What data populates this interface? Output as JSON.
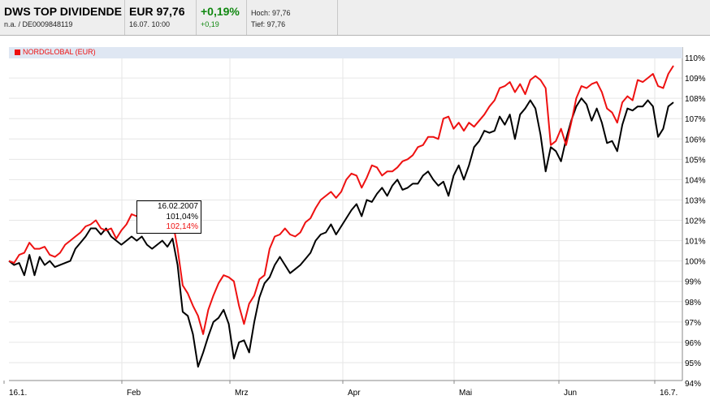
{
  "header": {
    "name": "DWS TOP DIVIDENDE",
    "meta": "n.a.  /  DE0009848119",
    "price": "EUR 97,76",
    "datetime": "16.07. 10:00",
    "change_pct": "+0,19%",
    "change_abs": "+0,19",
    "high": "Hoch: 97,76",
    "low": "Tief: 97,76"
  },
  "legend": {
    "label": "NORDGLOBAL (EUR)",
    "color": "#ee1111"
  },
  "tooltip": {
    "date": "16.02.2007",
    "black_value": "101,04%",
    "red_value": "102,14%"
  },
  "chart_data": {
    "type": "line",
    "x_labels": [
      "16.1.",
      "Feb",
      "Mrz",
      "Apr",
      "Mai",
      "Jun",
      "16.7."
    ],
    "y_ticks": [
      "94%",
      "95%",
      "96%",
      "97%",
      "98%",
      "99%",
      "100%",
      "101%",
      "102%",
      "103%",
      "104%",
      "105%",
      "106%",
      "107%",
      "108%",
      "109%",
      "110%"
    ],
    "ylim": [
      94,
      110
    ],
    "grid": true,
    "series": [
      {
        "name": "",
        "color": "#000000",
        "values": [
          100.0,
          99.8,
          99.9,
          99.3,
          100.3,
          99.3,
          100.2,
          99.8,
          100.0,
          99.7,
          99.8,
          99.9,
          100.0,
          100.6,
          100.9,
          101.2,
          101.6,
          101.6,
          101.3,
          101.6,
          101.2,
          101.0,
          100.8,
          101.0,
          101.2,
          101.0,
          101.2,
          100.8,
          100.6,
          100.8,
          101.0,
          100.7,
          101.1,
          99.8,
          97.5,
          97.3,
          96.4,
          94.8,
          95.5,
          96.3,
          97.0,
          97.2,
          97.6,
          96.9,
          95.2,
          96.0,
          96.1,
          95.5,
          97.0,
          98.2,
          98.9,
          99.2,
          99.8,
          100.2,
          99.8,
          99.4,
          99.6,
          99.8,
          100.1,
          100.4,
          101.0,
          101.3,
          101.4,
          101.8,
          101.3,
          101.7,
          102.1,
          102.5,
          102.8,
          102.2,
          103.0,
          102.9,
          103.3,
          103.6,
          103.2,
          103.7,
          104.0,
          103.5,
          103.6,
          103.8,
          103.8,
          104.2,
          104.4,
          104.0,
          103.7,
          103.9,
          103.2,
          104.2,
          104.7,
          104.0,
          104.7,
          105.6,
          105.9,
          106.4,
          106.3,
          106.4,
          107.1,
          106.7,
          107.2,
          106.0,
          107.2,
          107.5,
          107.9,
          107.5,
          106.2,
          104.4,
          105.6,
          105.4,
          104.9,
          106.0,
          106.9,
          107.6,
          108.0,
          107.7,
          106.9,
          107.5,
          106.8,
          105.8,
          105.9,
          105.4,
          106.7,
          107.5,
          107.4,
          107.6,
          107.6,
          107.9,
          107.6,
          106.1,
          106.5,
          107.6,
          107.8
        ]
      },
      {
        "name": "NORDGLOBAL (EUR)",
        "color": "#ee1111",
        "values": [
          100.0,
          99.9,
          100.3,
          100.4,
          100.9,
          100.6,
          100.6,
          100.7,
          100.3,
          100.2,
          100.4,
          100.8,
          101.0,
          101.2,
          101.4,
          101.7,
          101.8,
          102.0,
          101.6,
          101.5,
          101.6,
          101.1,
          101.5,
          101.8,
          102.3,
          102.2,
          102.6,
          102.3,
          102.2,
          102.1,
          102.4,
          102.1,
          102.0,
          100.6,
          98.8,
          98.4,
          97.8,
          97.3,
          96.4,
          97.6,
          98.3,
          98.9,
          99.3,
          99.2,
          99.0,
          97.8,
          96.9,
          97.9,
          98.3,
          99.1,
          99.3,
          100.6,
          101.2,
          101.3,
          101.6,
          101.3,
          101.2,
          101.4,
          101.9,
          102.1,
          102.6,
          103.0,
          103.2,
          103.4,
          103.1,
          103.4,
          104.0,
          104.3,
          104.2,
          103.6,
          104.1,
          104.7,
          104.6,
          104.2,
          104.4,
          104.4,
          104.6,
          104.9,
          105.0,
          105.2,
          105.6,
          105.7,
          106.1,
          106.1,
          106.0,
          107.0,
          107.1,
          106.5,
          106.8,
          106.4,
          106.8,
          106.6,
          106.9,
          107.2,
          107.6,
          107.9,
          108.5,
          108.6,
          108.8,
          108.3,
          108.7,
          108.2,
          108.9,
          109.1,
          108.9,
          108.5,
          105.7,
          105.9,
          106.5,
          105.7,
          106.8,
          108.0,
          108.6,
          108.5,
          108.7,
          108.8,
          108.3,
          107.5,
          107.3,
          106.8,
          107.8,
          108.1,
          107.9,
          108.9,
          108.8,
          109.0,
          109.2,
          108.6,
          108.5,
          109.2,
          109.6
        ]
      }
    ]
  }
}
